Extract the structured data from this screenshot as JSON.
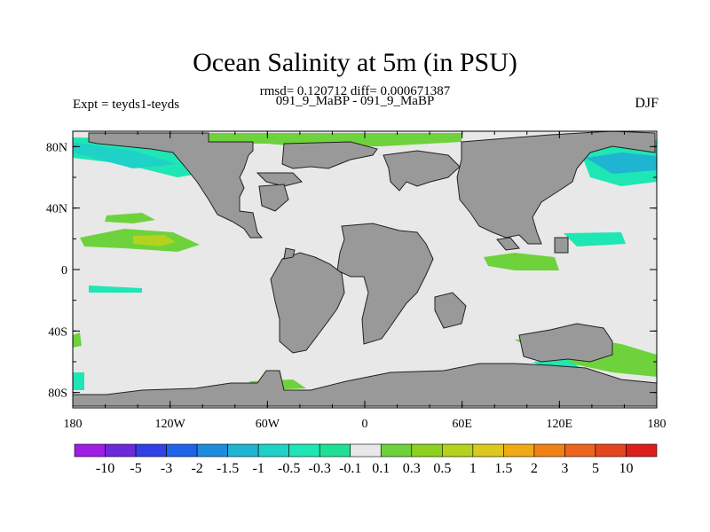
{
  "chart_data": {
    "type": "heatmap",
    "title": "Ocean Salinity at 5m (in PSU)",
    "subtitle": "rmsd= 0.120712 diff= 0.000671387",
    "left_string": "Expt = teyds1-teyds",
    "center_string": "091_9_MaBP - 091_9_MaBP",
    "right_string": "DJF",
    "x_ticks": [
      "180",
      "120W",
      "60W",
      "0",
      "60E",
      "120E",
      "180"
    ],
    "x_tick_values": [
      -180,
      -120,
      -60,
      0,
      60,
      120,
      180
    ],
    "y_ticks": [
      "80N",
      "40N",
      "0",
      "40S",
      "80S"
    ],
    "y_tick_values": [
      80,
      40,
      0,
      -40,
      -80
    ],
    "xlim": [
      -180,
      180
    ],
    "ylim": [
      -90,
      90
    ],
    "levels": [
      "-10",
      "-5",
      "-3",
      "-2",
      "-1.5",
      "-1",
      "-0.5",
      "-0.3",
      "-0.1",
      "0.1",
      "0.3",
      "0.5",
      "1",
      "1.5",
      "2",
      "3",
      "5",
      "10"
    ],
    "colors": [
      "#a01ee6",
      "#6e28dc",
      "#3241e6",
      "#1e64eb",
      "#1e8cdc",
      "#1eb4d2",
      "#1ed2c8",
      "#1ee6b4",
      "#1ee196",
      "#e8e8e8",
      "#6ed23c",
      "#8cd21e",
      "#b4d21e",
      "#dcc81e",
      "#f0aa14",
      "#f08214",
      "#ec641e",
      "#e6461e",
      "#dc1e1e"
    ],
    "land_color": "#999999",
    "background_color": "#e8e8e8"
  }
}
